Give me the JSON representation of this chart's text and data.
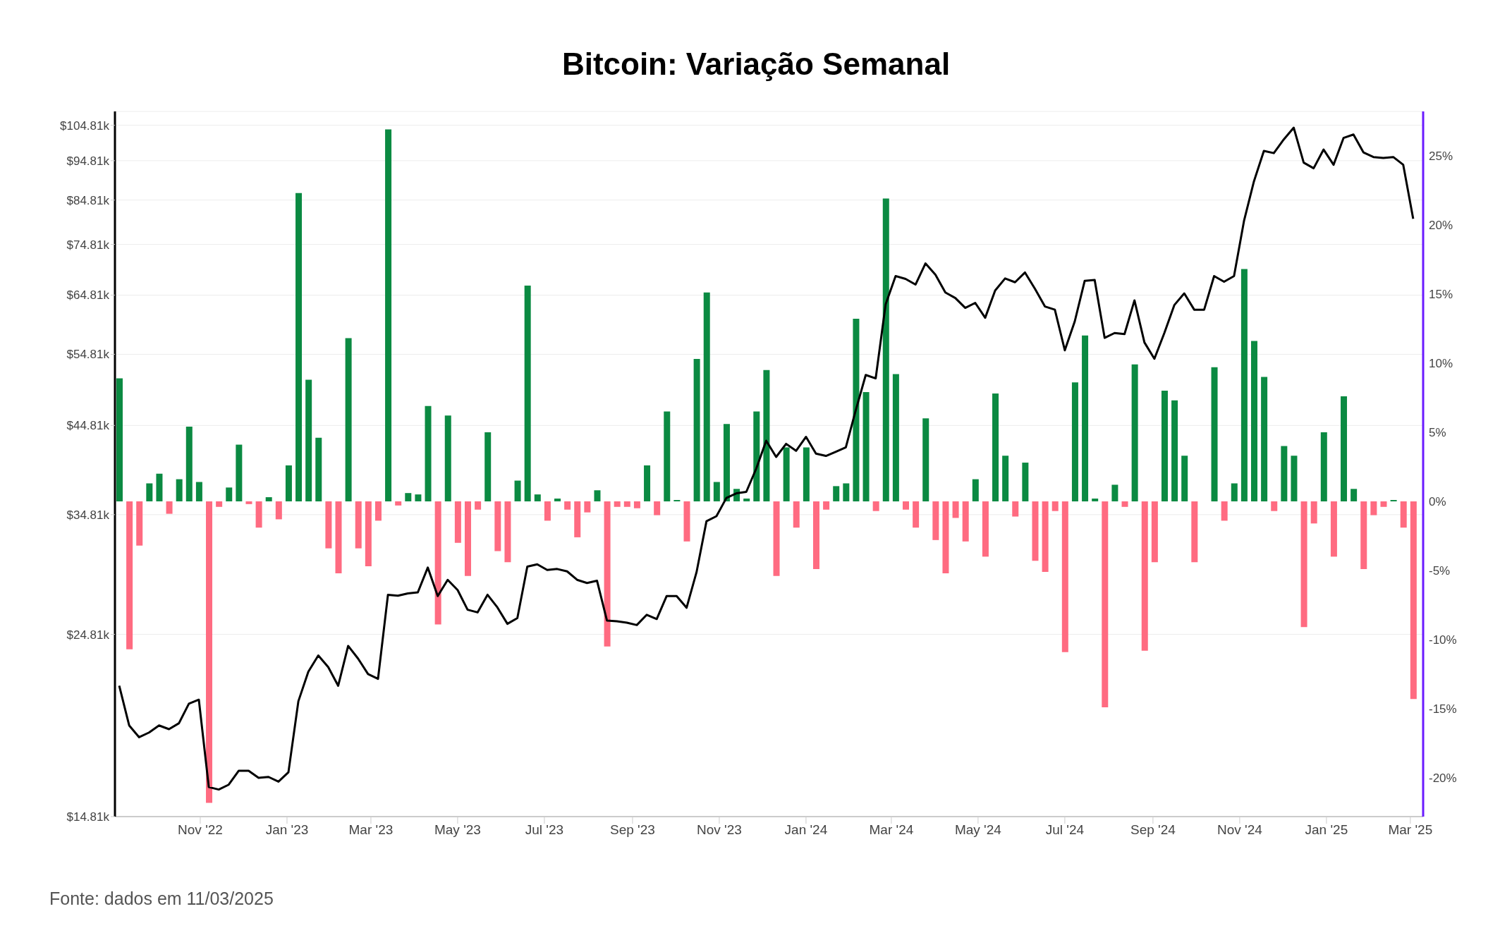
{
  "chart_data": {
    "type": "bar",
    "title": "Bitcoin: Variação Semanal",
    "annotations": [
      "Fonte: dados em 11/03/2025"
    ],
    "x": [
      "2022-09-05",
      "2022-09-12",
      "2022-09-19",
      "2022-09-26",
      "2022-10-03",
      "2022-10-10",
      "2022-10-17",
      "2022-10-24",
      "2022-10-31",
      "2022-11-07",
      "2022-11-14",
      "2022-11-21",
      "2022-11-28",
      "2022-12-05",
      "2022-12-12",
      "2022-12-19",
      "2022-12-26",
      "2023-01-02",
      "2023-01-09",
      "2023-01-16",
      "2023-01-23",
      "2023-01-30",
      "2023-02-06",
      "2023-02-13",
      "2023-02-20",
      "2023-02-27",
      "2023-03-06",
      "2023-03-13",
      "2023-03-20",
      "2023-03-27",
      "2023-04-03",
      "2023-04-10",
      "2023-04-17",
      "2023-04-24",
      "2023-05-01",
      "2023-05-08",
      "2023-05-15",
      "2023-05-22",
      "2023-05-29",
      "2023-06-05",
      "2023-06-12",
      "2023-06-19",
      "2023-06-26",
      "2023-07-03",
      "2023-07-10",
      "2023-07-17",
      "2023-07-24",
      "2023-07-31",
      "2023-08-07",
      "2023-08-14",
      "2023-08-21",
      "2023-08-28",
      "2023-09-04",
      "2023-09-11",
      "2023-09-18",
      "2023-09-25",
      "2023-10-02",
      "2023-10-09",
      "2023-10-16",
      "2023-10-23",
      "2023-10-30",
      "2023-11-06",
      "2023-11-13",
      "2023-11-20",
      "2023-11-27",
      "2023-12-04",
      "2023-12-11",
      "2023-12-18",
      "2023-12-25",
      "2024-01-01",
      "2024-01-08",
      "2024-01-15",
      "2024-01-22",
      "2024-01-29",
      "2024-02-05",
      "2024-02-12",
      "2024-02-19",
      "2024-02-26",
      "2024-03-04",
      "2024-03-11",
      "2024-03-18",
      "2024-03-25",
      "2024-04-01",
      "2024-04-08",
      "2024-04-15",
      "2024-04-22",
      "2024-04-29",
      "2024-05-06",
      "2024-05-13",
      "2024-05-20",
      "2024-05-27",
      "2024-06-03",
      "2024-06-10",
      "2024-06-17",
      "2024-06-24",
      "2024-07-01",
      "2024-07-08",
      "2024-07-15",
      "2024-07-22",
      "2024-07-29",
      "2024-08-05",
      "2024-08-12",
      "2024-08-19",
      "2024-08-26",
      "2024-09-02",
      "2024-09-09",
      "2024-09-16",
      "2024-09-23",
      "2024-09-30",
      "2024-10-07",
      "2024-10-14",
      "2024-10-21",
      "2024-10-28",
      "2024-11-04",
      "2024-11-11",
      "2024-11-18",
      "2024-11-25",
      "2024-12-02",
      "2024-12-09",
      "2024-12-16",
      "2024-12-23",
      "2024-12-30",
      "2025-01-06",
      "2025-01-13",
      "2025-01-20",
      "2025-01-27",
      "2025-02-03",
      "2025-02-10",
      "2025-02-17",
      "2025-02-24",
      "2025-03-03"
    ],
    "series": [
      {
        "axis": "y2",
        "values": [
          8.9,
          -10.7,
          -3.2,
          1.3,
          2.0,
          -0.9,
          1.6,
          5.4,
          1.4,
          -21.8,
          -0.4,
          1.0,
          4.1,
          -0.2,
          -1.9,
          0.3,
          -1.3,
          2.6,
          22.3,
          8.8,
          4.6,
          -3.4,
          -5.2,
          11.8,
          -3.4,
          -4.7,
          -1.4,
          26.9,
          -0.3,
          0.6,
          0.5,
          6.9,
          -8.9,
          6.2,
          -3.0,
          -5.4,
          -0.6,
          5.0,
          -3.6,
          -4.4,
          1.5,
          15.6,
          0.5,
          -1.4,
          0.2,
          -0.6,
          -2.6,
          -0.8,
          0.8,
          -10.5,
          -0.4,
          -0.4,
          -0.5,
          2.6,
          -1.0,
          6.5,
          0.1,
          -2.9,
          10.3,
          15.1,
          1.4,
          5.6,
          0.9,
          0.2,
          6.5,
          9.5,
          -5.4,
          3.9,
          -1.9,
          3.9,
          -4.9,
          -0.6,
          1.1,
          1.3,
          13.2,
          7.9,
          -0.7,
          21.9,
          9.2,
          -0.6,
          -1.9,
          6.0,
          -2.8,
          -5.2,
          -1.2,
          -2.9,
          1.6,
          -4.0,
          7.8,
          3.3,
          -1.1,
          2.8,
          -4.3,
          -5.1,
          -0.7,
          -10.9,
          8.6,
          12.0,
          0.2,
          -14.9,
          1.2,
          -0.4,
          9.9,
          -10.8,
          -4.4,
          8.0,
          7.3,
          3.3,
          -4.4,
          0.0,
          9.7,
          -1.4,
          1.3,
          16.8,
          11.6,
          9.0,
          -0.7,
          4.0,
          3.3,
          -9.1,
          -1.6,
          5.0,
          -4.0,
          7.6,
          0.9,
          -4.9,
          -1.0,
          -0.4,
          0.1,
          -1.9,
          -14.3
        ],
        "colors": [
          "#0b8a42",
          "#ff6b81",
          "#ff6b81",
          "#0b8a42",
          "#0b8a42",
          "#ff6b81",
          "#0b8a42",
          "#0b8a42",
          "#0b8a42",
          "#ff6b81",
          "#ff6b81",
          "#0b8a42",
          "#0b8a42",
          "#ff6b81",
          "#ff6b81",
          "#0b8a42",
          "#ff6b81",
          "#0b8a42",
          "#0b8a42",
          "#0b8a42",
          "#0b8a42",
          "#ff6b81",
          "#ff6b81",
          "#0b8a42",
          "#ff6b81",
          "#ff6b81",
          "#ff6b81",
          "#0b8a42",
          "#ff6b81",
          "#0b8a42",
          "#0b8a42",
          "#0b8a42",
          "#ff6b81",
          "#0b8a42",
          "#ff6b81",
          "#ff6b81",
          "#ff6b81",
          "#0b8a42",
          "#ff6b81",
          "#ff6b81",
          "#0b8a42",
          "#0b8a42",
          "#0b8a42",
          "#ff6b81",
          "#0b8a42",
          "#ff6b81",
          "#ff6b81",
          "#ff6b81",
          "#0b8a42",
          "#ff6b81",
          "#ff6b81",
          "#ff6b81",
          "#ff6b81",
          "#0b8a42",
          "#ff6b81",
          "#0b8a42",
          "#0b8a42",
          "#ff6b81",
          "#0b8a42",
          "#0b8a42",
          "#0b8a42",
          "#0b8a42",
          "#0b8a42",
          "#0b8a42",
          "#0b8a42",
          "#0b8a42",
          "#ff6b81",
          "#0b8a42",
          "#ff6b81",
          "#0b8a42",
          "#ff6b81",
          "#ff6b81",
          "#0b8a42",
          "#0b8a42",
          "#0b8a42",
          "#0b8a42",
          "#ff6b81",
          "#0b8a42",
          "#0b8a42",
          "#ff6b81",
          "#ff6b81",
          "#0b8a42",
          "#ff6b81",
          "#ff6b81",
          "#ff6b81",
          "#ff6b81",
          "#0b8a42",
          "#ff6b81",
          "#0b8a42",
          "#0b8a42",
          "#ff6b81",
          "#0b8a42",
          "#ff6b81",
          "#ff6b81",
          "#ff6b81",
          "#ff6b81",
          "#0b8a42",
          "#0b8a42",
          "#0b8a42",
          "#ff6b81",
          "#0b8a42",
          "#ff6b81",
          "#0b8a42",
          "#ff6b81",
          "#ff6b81",
          "#0b8a42",
          "#0b8a42",
          "#0b8a42",
          "#ff6b81",
          "#0b8a42",
          "#0b8a42",
          "#ff6b81",
          "#0b8a42",
          "#0b8a42",
          "#0b8a42",
          "#0b8a42",
          "#ff6b81",
          "#0b8a42",
          "#0b8a42",
          "#ff6b81",
          "#ff6b81",
          "#0b8a42",
          "#ff6b81",
          "#0b8a42",
          "#0b8a42",
          "#ff6b81",
          "#ff6b81",
          "#ff6b81",
          "#0b8a42",
          "#ff6b81",
          "#ff6b81"
        ]
      },
      {
        "type": "line",
        "axis": "y",
        "color": "#000000",
        "values": [
          21450,
          19170,
          18540,
          18790,
          19170,
          18970,
          19290,
          20390,
          20620,
          16100,
          15990,
          16210,
          16860,
          16860,
          16530,
          16570,
          16350,
          16790,
          20530,
          22320,
          23370,
          22610,
          21450,
          24010,
          23160,
          22170,
          21870,
          27750,
          27680,
          27860,
          27940,
          29970,
          27650,
          28950,
          28120,
          26600,
          26400,
          27750,
          26770,
          25560,
          25980,
          30050,
          30250,
          29770,
          29850,
          29650,
          28950,
          28690,
          28880,
          25800,
          25740,
          25640,
          25470,
          26220,
          25910,
          27650,
          27650,
          26750,
          29580,
          34170,
          34660,
          36500,
          36980,
          37130,
          39660,
          42920,
          40990,
          42540,
          41710,
          43390,
          41380,
          41110,
          41600,
          42110,
          46790,
          51690,
          51200,
          63150,
          68390,
          67850,
          66770,
          70880,
          68660,
          65300,
          64280,
          62510,
          63400,
          60780,
          65650,
          67940,
          67210,
          69090,
          65980,
          62760,
          62190,
          55440,
          60160,
          67490,
          67660,
          57420,
          58210,
          58040,
          63850,
          56680,
          54120,
          58210,
          63000,
          65120,
          62190,
          62190,
          68390,
          67310,
          68390,
          79930,
          89420,
          97460,
          96860,
          100700,
          104100,
          94300,
          92800,
          97850,
          93720,
          101100,
          102100,
          97070,
          95800,
          95530,
          95800,
          93720,
          80430
        ]
      }
    ],
    "xlim": [
      "2022-09-02",
      "2025-03-10"
    ],
    "xticks": [
      {
        "value": "2022-11-01",
        "label": "Nov '22"
      },
      {
        "value": "2023-01-01",
        "label": "Jan '23"
      },
      {
        "value": "2023-03-01",
        "label": "Mar '23"
      },
      {
        "value": "2023-05-01",
        "label": "May '23"
      },
      {
        "value": "2023-07-01",
        "label": "Jul '23"
      },
      {
        "value": "2023-09-01",
        "label": "Sep '23"
      },
      {
        "value": "2023-11-01",
        "label": "Nov '23"
      },
      {
        "value": "2024-01-01",
        "label": "Jan '24"
      },
      {
        "value": "2024-03-01",
        "label": "Mar '24"
      },
      {
        "value": "2024-05-01",
        "label": "May '24"
      },
      {
        "value": "2024-07-01",
        "label": "Jul '24"
      },
      {
        "value": "2024-09-01",
        "label": "Sep '24"
      },
      {
        "value": "2024-11-01",
        "label": "Nov '24"
      },
      {
        "value": "2025-01-01",
        "label": "Jan '25"
      },
      {
        "value": "2025-03-01",
        "label": "Mar '25"
      }
    ],
    "ylim": [
      14810,
      109000
    ],
    "yticks": [
      {
        "value": 14810,
        "label": "$14.81k"
      },
      {
        "value": 24810,
        "label": "$24.81k"
      },
      {
        "value": 34810,
        "label": "$34.81k"
      },
      {
        "value": 44810,
        "label": "$44.81k"
      },
      {
        "value": 54810,
        "label": "$54.81k"
      },
      {
        "value": 64810,
        "label": "$64.81k"
      },
      {
        "value": 74810,
        "label": "$74.81k"
      },
      {
        "value": 84810,
        "label": "$84.81k"
      },
      {
        "value": 94810,
        "label": "$94.81k"
      },
      {
        "value": 104810,
        "label": "$104.81k"
      }
    ],
    "y2lim": [
      -22.8,
      28.2
    ],
    "y2ticks": [
      {
        "value": -20,
        "label": "-20%"
      },
      {
        "value": -15,
        "label": "-15%"
      },
      {
        "value": -10,
        "label": "-10%"
      },
      {
        "value": -5,
        "label": "-5%"
      },
      {
        "value": 0,
        "label": "0%"
      },
      {
        "value": 5,
        "label": "5%"
      },
      {
        "value": 10,
        "label": "10%"
      },
      {
        "value": 15,
        "label": "15%"
      },
      {
        "value": 20,
        "label": "20%"
      },
      {
        "value": 25,
        "label": "25%"
      }
    ],
    "log": "y",
    "grid": "y"
  }
}
